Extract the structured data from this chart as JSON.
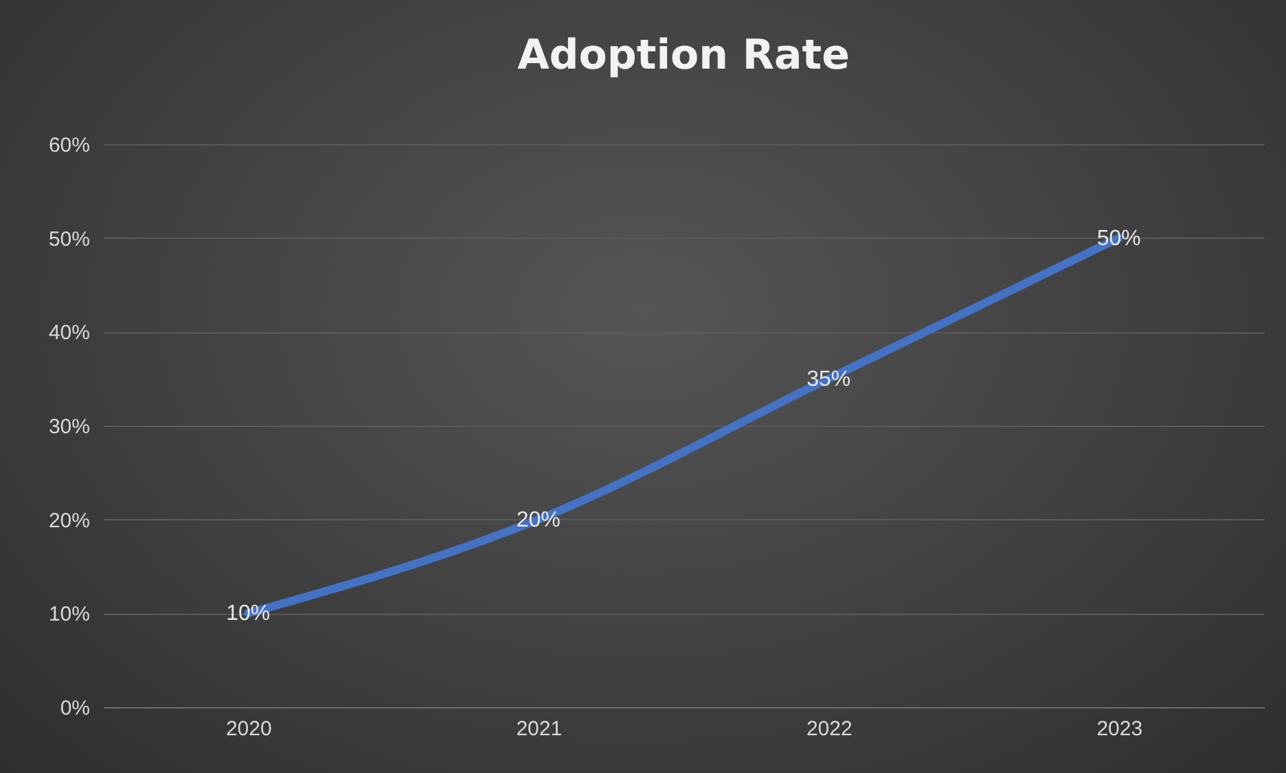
{
  "chart_data": {
    "type": "line",
    "title": "Adoption Rate",
    "categories": [
      "2020",
      "2021",
      "2022",
      "2023"
    ],
    "series": [
      {
        "color": "#4472c4",
        "values": [
          10,
          20,
          35,
          50
        ],
        "value_labels": [
          "10%",
          "20%",
          "35%",
          "50%"
        ]
      }
    ],
    "ylim": [
      0,
      60
    ],
    "yticks": [
      {
        "value": 0,
        "label": "0%"
      },
      {
        "value": 10,
        "label": "10%"
      },
      {
        "value": 20,
        "label": "20%"
      },
      {
        "value": 30,
        "label": "30%"
      },
      {
        "value": 40,
        "label": "40%"
      },
      {
        "value": 50,
        "label": "50%"
      },
      {
        "value": 60,
        "label": "60%"
      }
    ],
    "grid": "y",
    "marker": "none",
    "line_style": "solid"
  }
}
